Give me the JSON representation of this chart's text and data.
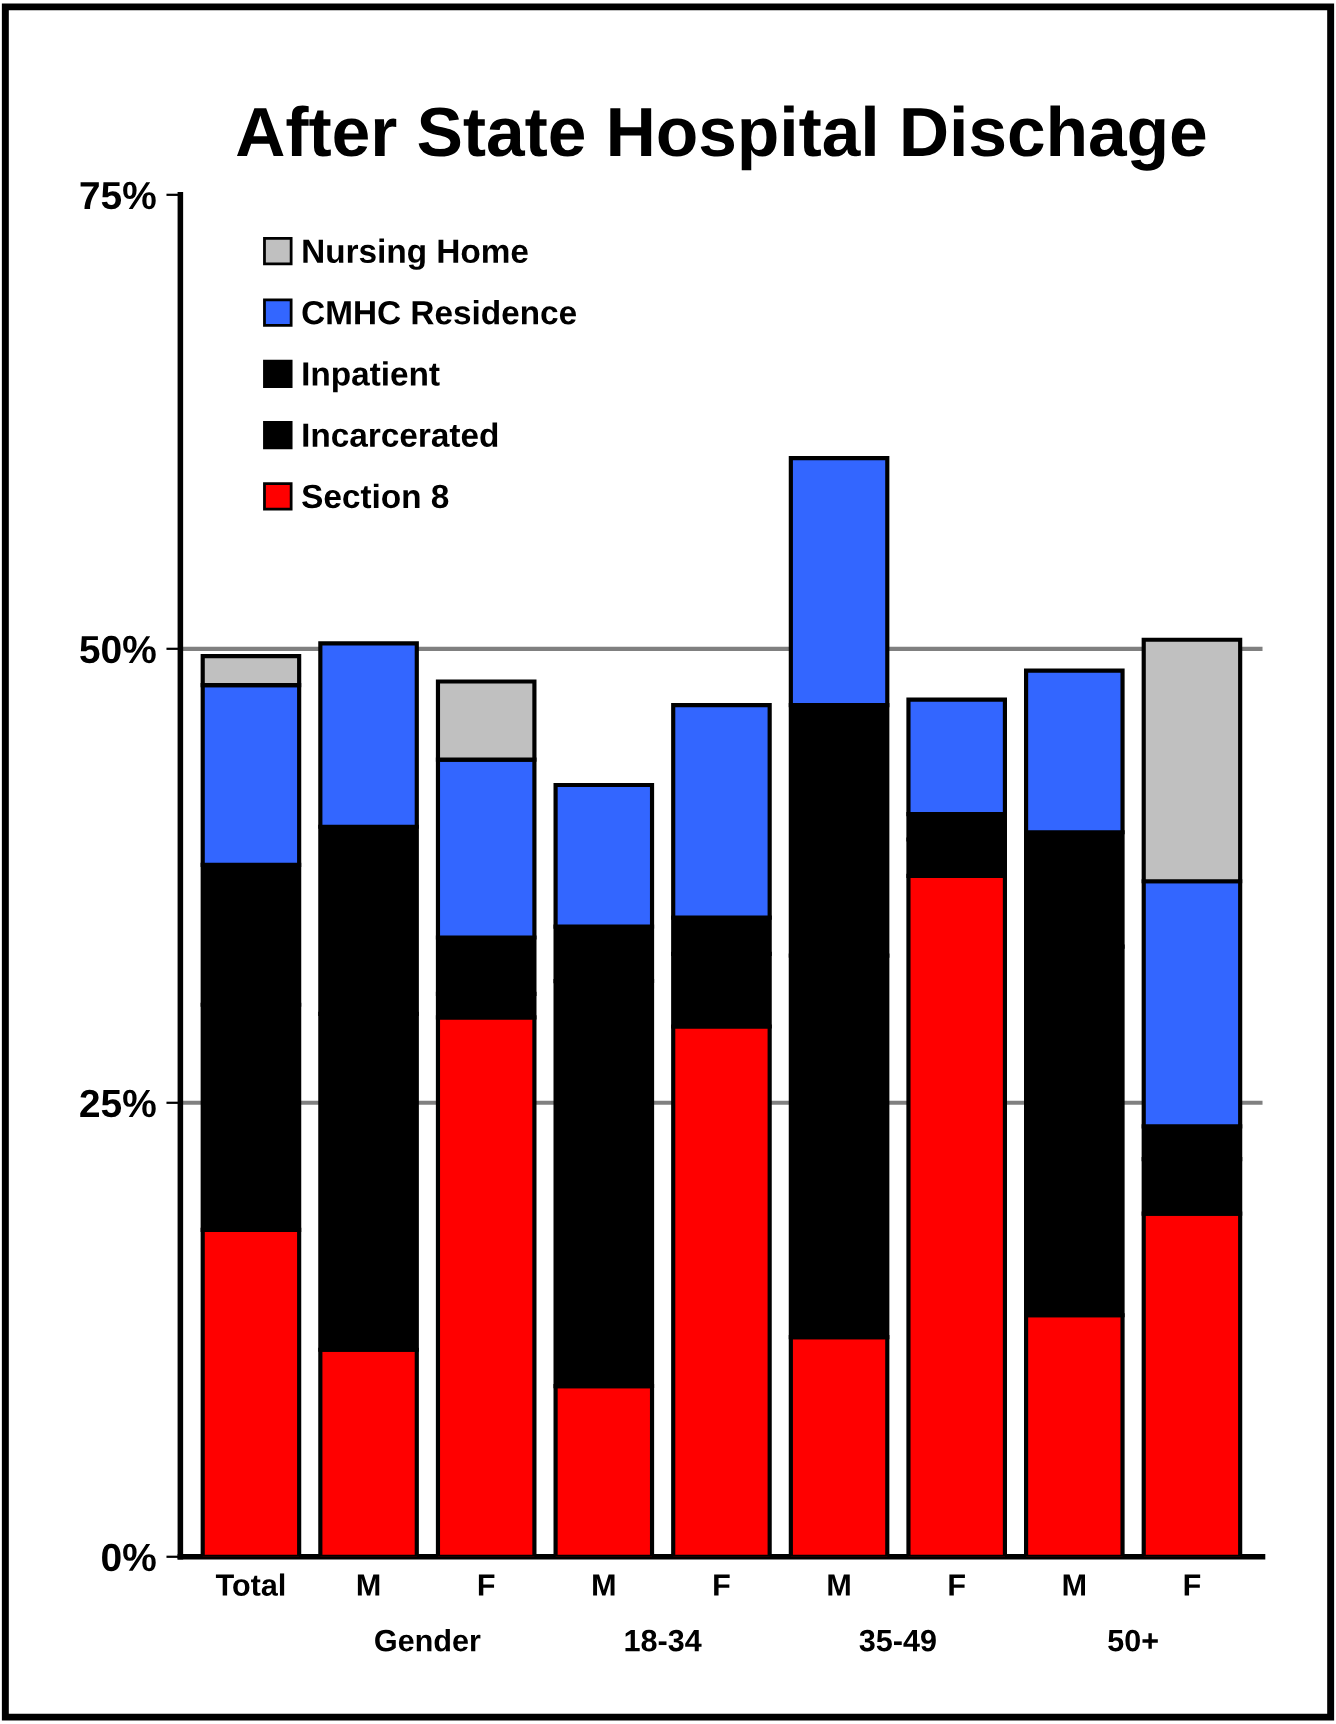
{
  "chart_data": {
    "type": "bar",
    "title": "After State Hospital Dischage",
    "stacked": true,
    "categories": [
      "Total",
      "M",
      "F",
      "M",
      "F",
      "M",
      "F",
      "M",
      "F"
    ],
    "series": [
      {
        "name": "Section 8",
        "color": "#ff0000",
        "values": [
          18.0,
          11.4,
          29.7,
          9.4,
          29.2,
          12.1,
          37.5,
          13.3,
          18.9
        ]
      },
      {
        "name": "Incarcerated",
        "color": "#000000",
        "values": [
          12.4,
          18.5,
          1.3,
          22.3,
          4.0,
          21.0,
          2.0,
          20.3,
          3.0
        ]
      },
      {
        "name": "Inpatient",
        "color": "#000000",
        "values": [
          7.7,
          10.3,
          3.1,
          3.0,
          2.0,
          13.8,
          1.4,
          6.3,
          1.8
        ]
      },
      {
        "name": "CMHC Residence",
        "color": "#3366ff",
        "values": [
          9.9,
          10.1,
          9.8,
          7.8,
          11.7,
          13.6,
          6.3,
          8.9,
          13.5
        ]
      },
      {
        "name": "Nursing Home",
        "color": "#c0c0c0",
        "values": [
          1.6,
          null,
          4.3,
          null,
          null,
          null,
          null,
          null,
          13.3
        ]
      }
    ],
    "ylim": [
      0,
      75
    ],
    "yticks": [
      {
        "value": 0,
        "label": "0%"
      },
      {
        "value": 25,
        "label": "25%"
      },
      {
        "value": 50,
        "label": "50%"
      },
      {
        "value": 75,
        "label": "75%"
      }
    ],
    "grid": "y",
    "legend": "top left",
    "annotations": [
      "Gender",
      "18-34",
      "35-49",
      "50+"
    ]
  }
}
